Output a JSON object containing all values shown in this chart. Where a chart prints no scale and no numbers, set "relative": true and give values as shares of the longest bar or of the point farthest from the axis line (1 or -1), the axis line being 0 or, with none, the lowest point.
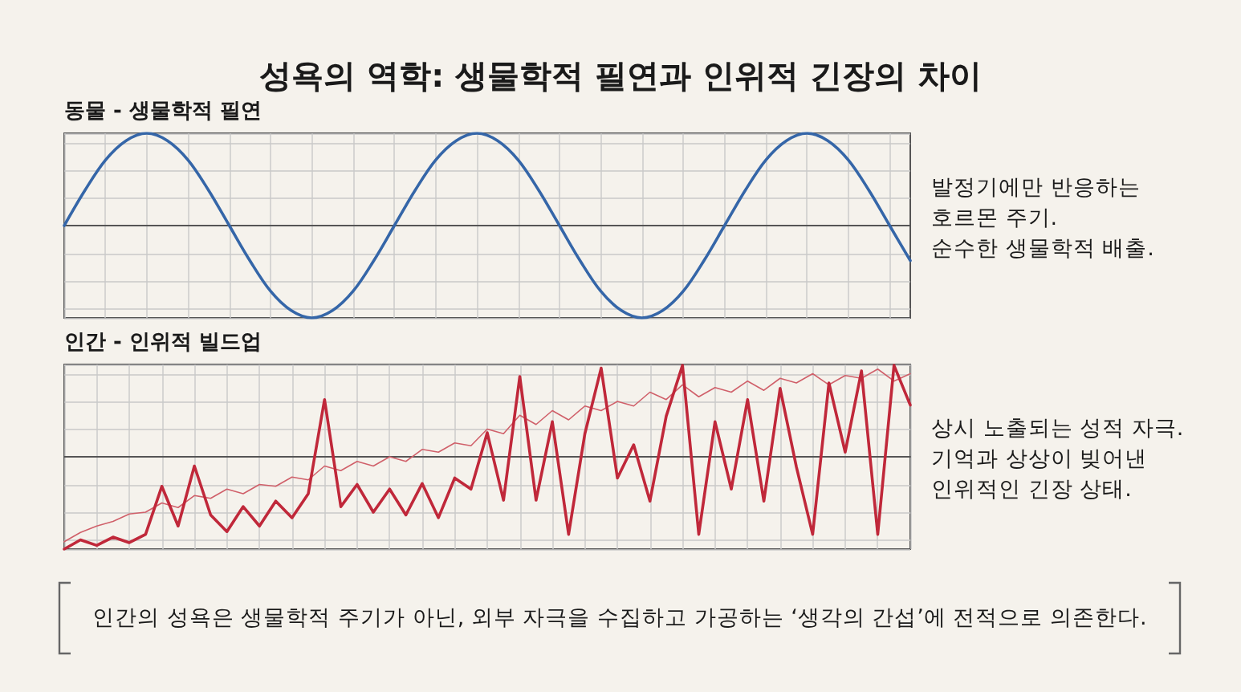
{
  "chart_data": [
    {
      "type": "line",
      "title": "성욕의 역학: 생물학적 필연과 인위적 긴장의 차이",
      "subtitle": "동물 - 생물학적 필연",
      "annotations": [
        "발정기에만 반응하는\n호르몬 주기.\n순수한 생물학적 배출."
      ],
      "relative": true,
      "grid": true,
      "marker": "none",
      "line_style": "solid",
      "categories": [
        null,
        null,
        null,
        null,
        null,
        null,
        null,
        null,
        null,
        null,
        null,
        null,
        null,
        null,
        null,
        null,
        null,
        null,
        null,
        null,
        null,
        null,
        null,
        null,
        null,
        null,
        null,
        null,
        null,
        null,
        null,
        null,
        null,
        null,
        null,
        null,
        null,
        null,
        null,
        null,
        null,
        null
      ],
      "series": [
        {
          "color": "#3566a8",
          "values": [
            0,
            0.38,
            0.71,
            0.92,
            1,
            0.92,
            0.71,
            0.38,
            0,
            -0.38,
            -0.71,
            -0.92,
            -1,
            -0.92,
            -0.71,
            -0.38,
            0,
            0.38,
            0.71,
            0.92,
            1,
            0.92,
            0.71,
            0.38,
            0,
            -0.38,
            -0.71,
            -0.92,
            -1,
            -0.92,
            -0.71,
            -0.38,
            0,
            0.38,
            0.71,
            0.92,
            1,
            0.92,
            0.71,
            0.38,
            0,
            -0.38
          ]
        }
      ]
    },
    {
      "type": "line",
      "title": "인간 - 인위적 빌드업",
      "annotations": [
        "상시 노출되는 성적 자극.\n기억과 상상이 빚어낸\n인위적인 긴장 상태.",
        "인간의 성욕은 생물학적 주기가 아닌, 외부 자극을 수집하고 가공하는 ‘생각의 간섭’에 전적으로 의존한다."
      ],
      "relative": true,
      "grid": true,
      "marker": "none",
      "line_style": "solid",
      "categories": [
        null,
        null,
        null,
        null,
        null,
        null,
        null,
        null,
        null,
        null,
        null,
        null,
        null,
        null,
        null,
        null,
        null,
        null,
        null,
        null,
        null,
        null,
        null,
        null,
        null,
        null,
        null,
        null,
        null,
        null,
        null,
        null,
        null,
        null,
        null,
        null,
        null,
        null,
        null,
        null,
        null,
        null,
        null,
        null,
        null,
        null,
        null,
        null,
        null,
        null,
        null,
        null,
        null
      ],
      "series": [
        {
          "color": "#d0606a",
          "values": [
            -0.92,
            -0.82,
            -0.75,
            -0.7,
            -0.62,
            -0.6,
            -0.5,
            -0.55,
            -0.42,
            -0.45,
            -0.35,
            -0.4,
            -0.3,
            -0.32,
            -0.22,
            -0.25,
            -0.1,
            -0.15,
            -0.05,
            -0.1,
            0.0,
            -0.05,
            0.08,
            0.05,
            0.15,
            0.12,
            0.3,
            0.25,
            0.45,
            0.35,
            0.5,
            0.4,
            0.55,
            0.5,
            0.6,
            0.55,
            0.7,
            0.62,
            0.78,
            0.65,
            0.75,
            0.7,
            0.82,
            0.72,
            0.85,
            0.8,
            0.9,
            0.78,
            0.88,
            0.85,
            0.95,
            0.82,
            0.9
          ]
        },
        {
          "color": "#c0283a",
          "values": [
            -1.0,
            -0.9,
            -0.96,
            -0.87,
            -0.93,
            -0.84,
            -0.32,
            -0.75,
            -0.1,
            -0.63,
            -0.81,
            -0.54,
            -0.75,
            -0.48,
            -0.66,
            -0.4,
            0.62,
            -0.54,
            -0.3,
            -0.6,
            -0.35,
            -0.63,
            -0.29,
            -0.66,
            -0.23,
            -0.35,
            0.26,
            -0.47,
            0.87,
            -0.47,
            0.38,
            -0.84,
            0.25,
            0.96,
            -0.23,
            0.13,
            -0.48,
            0.44,
            0.99,
            -0.84,
            0.38,
            -0.35,
            0.62,
            -0.48,
            0.74,
            -0.11,
            -0.84,
            0.8,
            0.05,
            0.93,
            -0.84,
            0.99,
            0.56
          ]
        }
      ]
    }
  ]
}
